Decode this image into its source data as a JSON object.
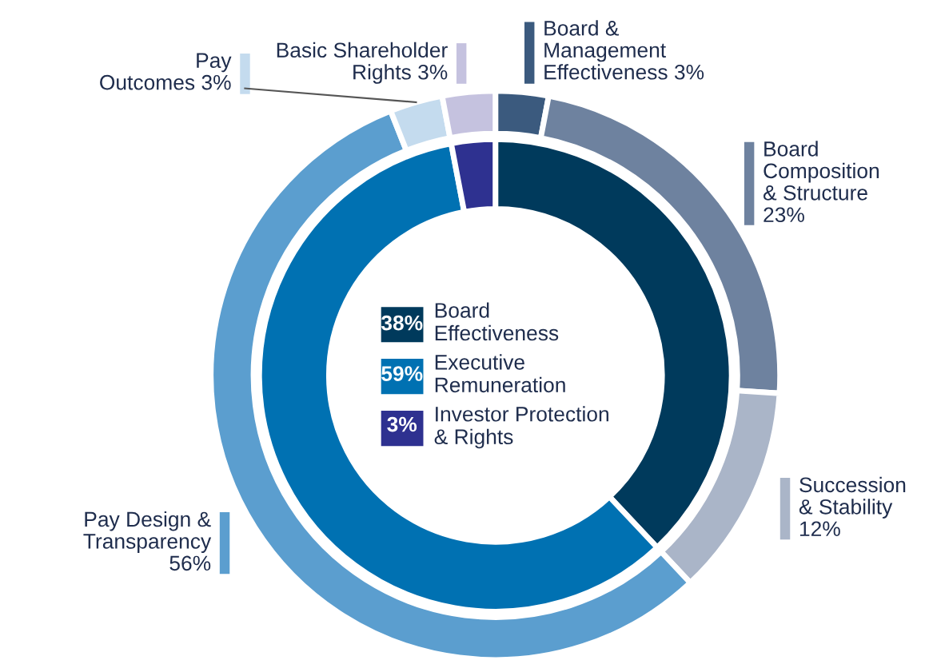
{
  "chart_data": {
    "type": "donut",
    "legend": "center",
    "categories": [
      "Board &\nManagement\nEffectiveness",
      "Board\nComposition\n& Structure",
      "Succession\n& Stability",
      "Pay Design &\nTransparency",
      "Pay\nOutcomes",
      "Basic Shareholder\nRights",
      "Board\nEffectiveness",
      "Executive\nRemuneration",
      "Investor Protection\n& Rights"
    ],
    "colors": [
      "#3b5a7e",
      "#6e829f",
      "#aab5c8",
      "#5b9ecf",
      "#c4dbee",
      "#c5c2df",
      "#003a5c",
      "#0071b2",
      "#2e3190"
    ],
    "value_labels": [
      "3%",
      "23%",
      "12%",
      "56%",
      "3%",
      "3%",
      "38%",
      "59%",
      "3%"
    ],
    "series": [
      {
        "values": [
          3,
          23,
          12,
          56,
          3,
          3,
          null,
          null,
          null
        ]
      },
      {
        "values": [
          null,
          null,
          null,
          null,
          null,
          null,
          38,
          59,
          3
        ]
      }
    ]
  }
}
